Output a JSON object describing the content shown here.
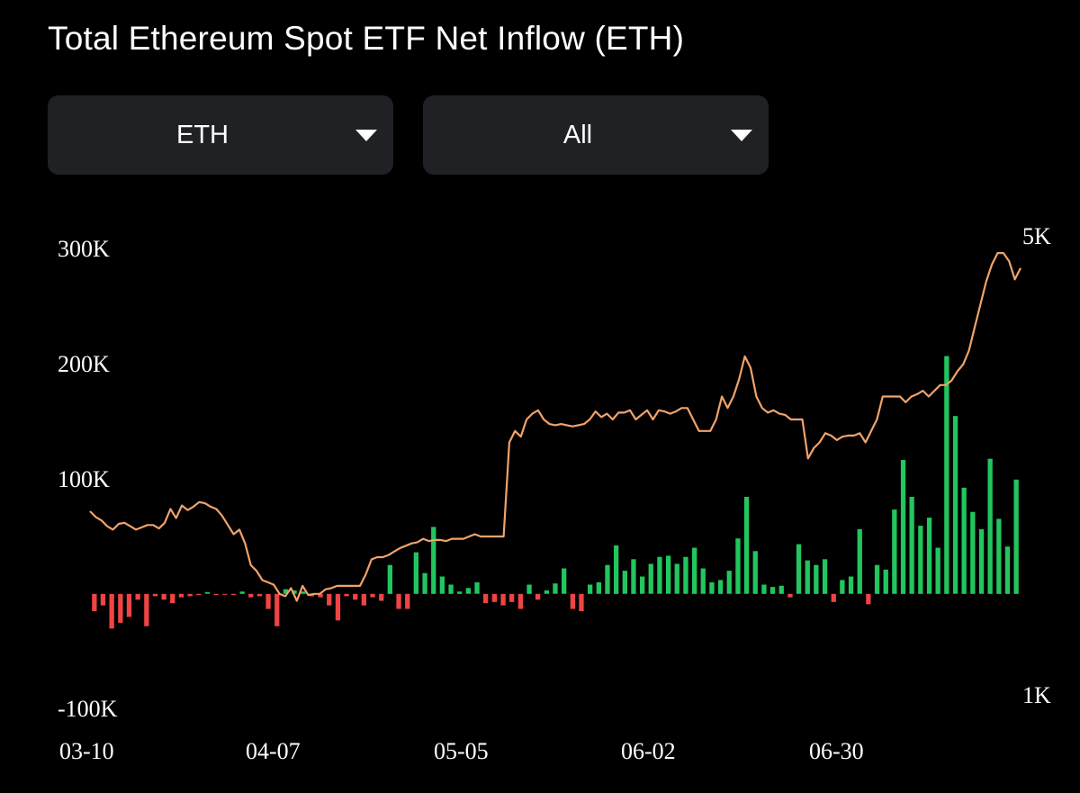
{
  "title": "Total Ethereum Spot ETF Net Inflow (ETH)",
  "controls": {
    "asset_select": {
      "value": "ETH"
    },
    "range_select": {
      "value": "All"
    }
  },
  "colors": {
    "positive_bar": "#22c55e",
    "negative_bar": "#ef4444",
    "price_line": "#f0a36a",
    "background": "#000000",
    "dropdown_bg": "#1f2124"
  },
  "chart_data": {
    "type": "bar",
    "title": "Total Ethereum Spot ETF Net Inflow (ETH)",
    "x_tick_labels": [
      "03-10",
      "04-07",
      "05-05",
      "06-02",
      "06-30"
    ],
    "y_left_ticks": [
      "300K",
      "200K",
      "100K",
      "-100K"
    ],
    "y_right_ticks": [
      "5K",
      "1K"
    ],
    "ylim_left": [
      -100000,
      300000
    ],
    "ylim_right": [
      1000,
      5000
    ],
    "grid": false,
    "series": [
      {
        "type": "bar",
        "values": [
          -15000,
          -10000,
          -30000,
          -25000,
          -20000,
          -5000,
          -28000,
          -2000,
          -5000,
          -8000,
          -3000,
          -2000,
          -1000,
          1500,
          -1000,
          -500,
          -1000,
          2000,
          -3000,
          -2000,
          -13000,
          -28000,
          4000,
          3000,
          2000,
          -2000,
          -3000,
          -10000,
          -23000,
          -2000,
          -5000,
          -10000,
          -3000,
          -6000,
          25000,
          -13000,
          -13000,
          36000,
          18000,
          58000,
          15000,
          8000,
          2000,
          5000,
          10000,
          -8000,
          -7000,
          -10000,
          -7000,
          -13000,
          8000,
          -5000,
          3000,
          9000,
          22000,
          -13000,
          -15000,
          8000,
          10000,
          25000,
          42000,
          20000,
          30000,
          15000,
          26000,
          32000,
          33000,
          26000,
          32000,
          40000,
          22000,
          10000,
          12000,
          20000,
          48000,
          84000,
          37000,
          8000,
          6000,
          7000,
          -3000,
          43000,
          29000,
          25000,
          30000,
          -7000,
          12000,
          15000,
          56000,
          -9000,
          25000,
          21000,
          73000,
          116000,
          84000,
          59000,
          66000,
          40000,
          206000,
          154000,
          92000,
          71000,
          56000,
          117000,
          65000,
          41000,
          99000
        ],
        "color_rule": "green if positive, red if negative"
      },
      {
        "type": "line",
        "y": [
          2600,
          2550,
          2520,
          2470,
          2440,
          2490,
          2500,
          2470,
          2440,
          2460,
          2480,
          2480,
          2450,
          2500,
          2620,
          2540,
          2650,
          2610,
          2640,
          2680,
          2670,
          2640,
          2620,
          2560,
          2480,
          2400,
          2440,
          2320,
          2130,
          2080,
          2000,
          1980,
          1960,
          1880,
          1860,
          1930,
          1820,
          1950,
          1870,
          1880,
          1880,
          1920,
          1930,
          1950,
          1950,
          1950,
          1950,
          1950,
          2050,
          2180,
          2200,
          2200,
          2220,
          2250,
          2280,
          2300,
          2320,
          2330,
          2360,
          2340,
          2350,
          2350,
          2340,
          2360,
          2360,
          2360,
          2380,
          2400,
          2380,
          2380,
          2380,
          2380,
          2380,
          3200,
          3300,
          3250,
          3400,
          3450,
          3480,
          3400,
          3360,
          3350,
          3360,
          3350,
          3340,
          3350,
          3360,
          3400,
          3470,
          3420,
          3450,
          3400,
          3460,
          3460,
          3480,
          3400,
          3440,
          3480,
          3400,
          3480,
          3470,
          3450,
          3470,
          3500,
          3500,
          3400,
          3300,
          3300,
          3300,
          3400,
          3600,
          3500,
          3600,
          3750,
          3950,
          3850,
          3600,
          3500,
          3460,
          3480,
          3450,
          3440,
          3400,
          3400,
          3400,
          3060,
          3150,
          3200,
          3280,
          3260,
          3220,
          3250,
          3260,
          3260,
          3280,
          3200,
          3300,
          3400,
          3600,
          3600,
          3600,
          3600,
          3550,
          3600,
          3620,
          3650,
          3600,
          3650,
          3700,
          3700,
          3740,
          3820,
          3880,
          4000,
          4200,
          4400,
          4600,
          4750,
          4850,
          4850,
          4780,
          4620,
          4720
        ],
        "axis": "right"
      }
    ]
  }
}
